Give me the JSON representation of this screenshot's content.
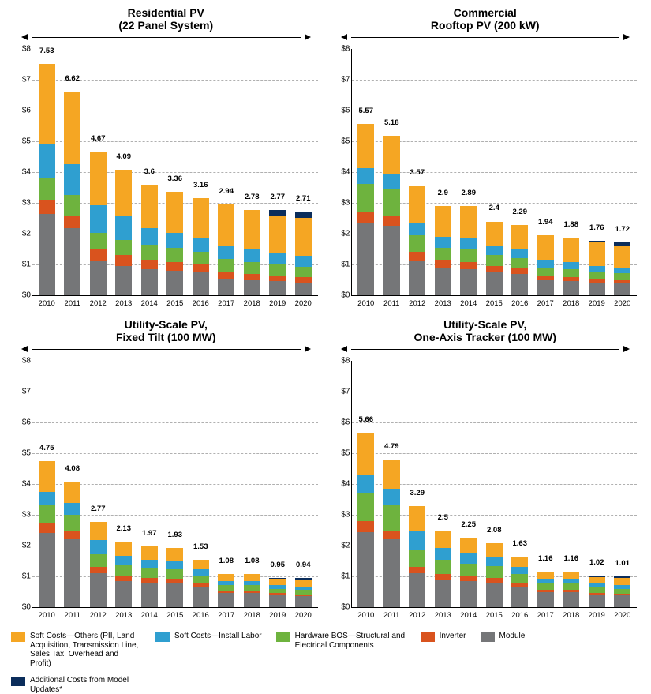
{
  "ylim": [
    0,
    8
  ],
  "ytick_step": 1,
  "ytick_prefix": "$",
  "grid_color": "#b0b0b0",
  "axis_color": "#000000",
  "background_color": "#ffffff",
  "title_fontsize": 14,
  "xlabel_fontsize": 9.5,
  "total_fontsize": 9.5,
  "colors": {
    "module": "#757678",
    "inverter": "#d9531e",
    "bos": "#6eb33e",
    "install_labor": "#2f9fd0",
    "soft_other": "#f5a623",
    "additional": "#0b2d5b"
  },
  "series_order": [
    "module",
    "inverter",
    "bos",
    "install_labor",
    "soft_other",
    "additional"
  ],
  "years": [
    "2010",
    "2011",
    "2012",
    "2013",
    "2014",
    "2015",
    "2016",
    "2017",
    "2018",
    "2019",
    "2020"
  ],
  "panels": [
    {
      "title_line1": "Residential PV",
      "title_line2": "(22 Panel System)",
      "totals": [
        7.53,
        6.62,
        4.67,
        4.09,
        3.6,
        3.36,
        3.16,
        2.94,
        2.78,
        2.77,
        2.71
      ],
      "data": [
        {
          "module": 2.65,
          "inverter": 0.45,
          "bos": 0.7,
          "install_labor": 1.1,
          "soft_other": 2.63,
          "additional": 0.0
        },
        {
          "module": 2.18,
          "inverter": 0.42,
          "bos": 0.65,
          "install_labor": 1.0,
          "soft_other": 2.37,
          "additional": 0.0
        },
        {
          "module": 1.1,
          "inverter": 0.38,
          "bos": 0.55,
          "install_labor": 0.9,
          "soft_other": 1.74,
          "additional": 0.0
        },
        {
          "module": 0.95,
          "inverter": 0.35,
          "bos": 0.5,
          "install_labor": 0.8,
          "soft_other": 1.49,
          "additional": 0.0
        },
        {
          "module": 0.85,
          "inverter": 0.3,
          "bos": 0.48,
          "install_labor": 0.55,
          "soft_other": 1.42,
          "additional": 0.0
        },
        {
          "module": 0.8,
          "inverter": 0.28,
          "bos": 0.45,
          "install_labor": 0.5,
          "soft_other": 1.33,
          "additional": 0.0
        },
        {
          "module": 0.75,
          "inverter": 0.25,
          "bos": 0.42,
          "install_labor": 0.45,
          "soft_other": 1.29,
          "additional": 0.0
        },
        {
          "module": 0.55,
          "inverter": 0.22,
          "bos": 0.4,
          "install_labor": 0.42,
          "soft_other": 1.35,
          "additional": 0.0
        },
        {
          "module": 0.5,
          "inverter": 0.2,
          "bos": 0.38,
          "install_labor": 0.4,
          "soft_other": 1.3,
          "additional": 0.0
        },
        {
          "module": 0.45,
          "inverter": 0.18,
          "bos": 0.36,
          "install_labor": 0.38,
          "soft_other": 1.2,
          "additional": 0.2
        },
        {
          "module": 0.42,
          "inverter": 0.16,
          "bos": 0.34,
          "install_labor": 0.36,
          "soft_other": 1.23,
          "additional": 0.2
        }
      ]
    },
    {
      "title_line1": "Commercial",
      "title_line2": "Rooftop PV (200 kW)",
      "totals": [
        5.57,
        5.18,
        3.57,
        2.9,
        2.89,
        2.4,
        2.29,
        1.94,
        1.88,
        1.76,
        1.72
      ],
      "data": [
        {
          "module": 2.35,
          "inverter": 0.38,
          "bos": 0.9,
          "install_labor": 0.5,
          "soft_other": 1.44,
          "additional": 0.0
        },
        {
          "module": 2.25,
          "inverter": 0.35,
          "bos": 0.85,
          "install_labor": 0.48,
          "soft_other": 1.25,
          "additional": 0.0
        },
        {
          "module": 1.1,
          "inverter": 0.3,
          "bos": 0.55,
          "install_labor": 0.4,
          "soft_other": 1.22,
          "additional": 0.0
        },
        {
          "module": 0.9,
          "inverter": 0.25,
          "bos": 0.4,
          "install_labor": 0.35,
          "soft_other": 1.0,
          "additional": 0.0
        },
        {
          "module": 0.85,
          "inverter": 0.24,
          "bos": 0.4,
          "install_labor": 0.35,
          "soft_other": 1.05,
          "additional": 0.0
        },
        {
          "module": 0.75,
          "inverter": 0.2,
          "bos": 0.35,
          "install_labor": 0.3,
          "soft_other": 0.8,
          "additional": 0.0
        },
        {
          "module": 0.7,
          "inverter": 0.18,
          "bos": 0.33,
          "install_labor": 0.28,
          "soft_other": 0.8,
          "additional": 0.0
        },
        {
          "module": 0.48,
          "inverter": 0.15,
          "bos": 0.28,
          "install_labor": 0.24,
          "soft_other": 0.79,
          "additional": 0.0
        },
        {
          "module": 0.45,
          "inverter": 0.14,
          "bos": 0.26,
          "install_labor": 0.23,
          "soft_other": 0.8,
          "additional": 0.0
        },
        {
          "module": 0.4,
          "inverter": 0.12,
          "bos": 0.24,
          "install_labor": 0.2,
          "soft_other": 0.75,
          "additional": 0.05
        },
        {
          "module": 0.38,
          "inverter": 0.11,
          "bos": 0.22,
          "install_labor": 0.19,
          "soft_other": 0.72,
          "additional": 0.1
        }
      ]
    },
    {
      "title_line1": "Utility-Scale PV,",
      "title_line2": "Fixed Tilt (100 MW)",
      "totals": [
        4.75,
        4.08,
        2.77,
        2.13,
        1.97,
        1.93,
        1.53,
        1.08,
        1.08,
        0.95,
        0.94
      ],
      "data": [
        {
          "module": 2.4,
          "inverter": 0.35,
          "bos": 0.55,
          "install_labor": 0.45,
          "soft_other": 1.0,
          "additional": 0.0
        },
        {
          "module": 2.2,
          "inverter": 0.3,
          "bos": 0.5,
          "install_labor": 0.4,
          "soft_other": 0.68,
          "additional": 0.0
        },
        {
          "module": 1.1,
          "inverter": 0.22,
          "bos": 0.4,
          "install_labor": 0.45,
          "soft_other": 0.6,
          "additional": 0.0
        },
        {
          "module": 0.85,
          "inverter": 0.18,
          "bos": 0.35,
          "install_labor": 0.3,
          "soft_other": 0.45,
          "additional": 0.0
        },
        {
          "module": 0.8,
          "inverter": 0.16,
          "bos": 0.32,
          "install_labor": 0.25,
          "soft_other": 0.44,
          "additional": 0.0
        },
        {
          "module": 0.78,
          "inverter": 0.15,
          "bos": 0.3,
          "install_labor": 0.25,
          "soft_other": 0.45,
          "additional": 0.0
        },
        {
          "module": 0.65,
          "inverter": 0.12,
          "bos": 0.25,
          "install_labor": 0.2,
          "soft_other": 0.31,
          "additional": 0.0
        },
        {
          "module": 0.45,
          "inverter": 0.09,
          "bos": 0.18,
          "install_labor": 0.14,
          "soft_other": 0.22,
          "additional": 0.0
        },
        {
          "module": 0.45,
          "inverter": 0.09,
          "bos": 0.18,
          "install_labor": 0.14,
          "soft_other": 0.22,
          "additional": 0.0
        },
        {
          "module": 0.38,
          "inverter": 0.07,
          "bos": 0.15,
          "install_labor": 0.12,
          "soft_other": 0.2,
          "additional": 0.03
        },
        {
          "module": 0.36,
          "inverter": 0.06,
          "bos": 0.14,
          "install_labor": 0.11,
          "soft_other": 0.22,
          "additional": 0.05
        }
      ]
    },
    {
      "title_line1": "Utility-Scale PV,",
      "title_line2": "One-Axis Tracker (100 MW)",
      "totals": [
        5.66,
        4.79,
        3.29,
        2.5,
        2.25,
        2.08,
        1.63,
        1.16,
        1.16,
        1.02,
        1.01
      ],
      "data": [
        {
          "module": 2.45,
          "inverter": 0.35,
          "bos": 0.9,
          "install_labor": 0.6,
          "soft_other": 1.36,
          "additional": 0.0
        },
        {
          "module": 2.2,
          "inverter": 0.3,
          "bos": 0.8,
          "install_labor": 0.55,
          "soft_other": 0.94,
          "additional": 0.0
        },
        {
          "module": 1.1,
          "inverter": 0.22,
          "bos": 0.55,
          "install_labor": 0.6,
          "soft_other": 0.82,
          "additional": 0.0
        },
        {
          "module": 0.9,
          "inverter": 0.18,
          "bos": 0.45,
          "install_labor": 0.4,
          "soft_other": 0.57,
          "additional": 0.0
        },
        {
          "module": 0.85,
          "inverter": 0.16,
          "bos": 0.4,
          "install_labor": 0.35,
          "soft_other": 0.49,
          "additional": 0.0
        },
        {
          "module": 0.8,
          "inverter": 0.15,
          "bos": 0.38,
          "install_labor": 0.3,
          "soft_other": 0.45,
          "additional": 0.0
        },
        {
          "module": 0.65,
          "inverter": 0.12,
          "bos": 0.3,
          "install_labor": 0.24,
          "soft_other": 0.32,
          "additional": 0.0
        },
        {
          "module": 0.48,
          "inverter": 0.09,
          "bos": 0.2,
          "install_labor": 0.16,
          "soft_other": 0.23,
          "additional": 0.0
        },
        {
          "module": 0.48,
          "inverter": 0.09,
          "bos": 0.2,
          "install_labor": 0.16,
          "soft_other": 0.23,
          "additional": 0.0
        },
        {
          "module": 0.4,
          "inverter": 0.07,
          "bos": 0.17,
          "install_labor": 0.14,
          "soft_other": 0.2,
          "additional": 0.04
        },
        {
          "module": 0.38,
          "inverter": 0.06,
          "bos": 0.16,
          "install_labor": 0.13,
          "soft_other": 0.22,
          "additional": 0.06
        }
      ]
    }
  ],
  "legend": [
    {
      "key": "soft_other",
      "label": "Soft Costs—Others (PII, Land Acquisition, Transmission Line, Sales Tax, Overhead and Profit)"
    },
    {
      "key": "install_labor",
      "label": "Soft Costs—Install Labor"
    },
    {
      "key": "bos",
      "label": "Hardware BOS—Structural and Electrical Components"
    },
    {
      "key": "inverter",
      "label": "Inverter"
    },
    {
      "key": "module",
      "label": "Module"
    },
    {
      "key": "additional",
      "label": "Additional Costs from Model Updates*"
    }
  ]
}
